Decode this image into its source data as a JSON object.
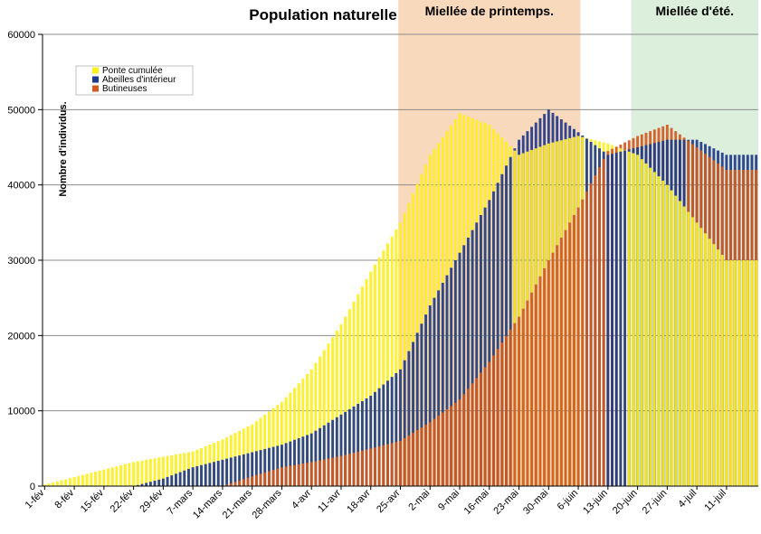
{
  "chart_data": {
    "type": "bar",
    "title": "Population naturelle",
    "ylabel": "Nombre d'individus.",
    "xlabel": "",
    "ylim": [
      0,
      60000
    ],
    "yticks": [
      0,
      10000,
      20000,
      30000,
      40000,
      50000,
      60000
    ],
    "grid": true,
    "legend_position": "top-left",
    "categories": [
      "1-fév",
      "8-fév",
      "15-fév",
      "22-fév",
      "29-fév",
      "7-mars",
      "14-mars",
      "21-mars",
      "28-mars",
      "4-avr",
      "11-avr",
      "18-avr",
      "25-avr",
      "2-mai",
      "9-mai",
      "16-mai",
      "23-mai",
      "30-mai",
      "6-juin",
      "13-juin",
      "20-juin",
      "27-juin",
      "4-juil",
      "11-juil"
    ],
    "bands": [
      {
        "label": "Miellée de printemps.",
        "start": "25-avr",
        "end": "6-juin",
        "color": "#f9d9bc"
      },
      {
        "label": "Miellée d'été.",
        "start": "19-juin",
        "end": "18-juil",
        "color": "#dcefdc"
      }
    ],
    "series": [
      {
        "name": "Ponte cumulée",
        "color": "#ffef1a",
        "values": [
          200,
          1200,
          2200,
          3200,
          3900,
          4600,
          6200,
          8200,
          11200,
          15500,
          21500,
          28500,
          35000,
          44000,
          49500,
          48000,
          44000,
          45500,
          46500,
          45500,
          44000,
          40000,
          35000,
          30000
        ]
      },
      {
        "name": "Abeilles d'intérieur",
        "color": "#1f3a8a",
        "values": [
          0,
          0,
          0,
          0,
          1000,
          2500,
          3500,
          4500,
          5500,
          7000,
          9500,
          12000,
          15500,
          24000,
          31000,
          38000,
          46000,
          50000,
          47000,
          44000,
          45000,
          46000,
          46000,
          44000
        ]
      },
      {
        "name": "Butineuses",
        "color": "#d2591f",
        "values": [
          0,
          0,
          0,
          0,
          0,
          0,
          0,
          1300,
          2500,
          3200,
          4000,
          5000,
          6000,
          8500,
          11500,
          16500,
          22500,
          30000,
          37000,
          44500,
          46500,
          48000,
          45000,
          42000
        ]
      }
    ]
  }
}
